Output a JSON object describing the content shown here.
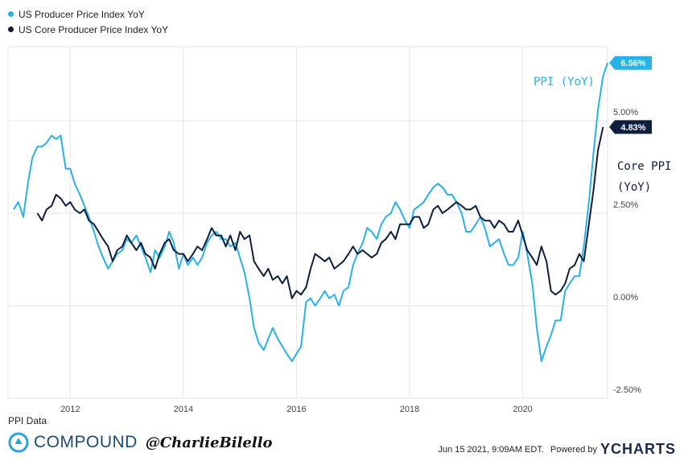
{
  "legend": {
    "items": [
      {
        "label": "US Producer Price Index YoY",
        "color": "#28b2e6"
      },
      {
        "label": "US Core Producer Price Index YoY",
        "color": "#0d1f3c"
      }
    ]
  },
  "footer": {
    "source": "PPI Data",
    "brand": "COMPOUND",
    "handle": "@CharlieBilello",
    "timestamp": "Jun 15 2021, 9:09AM EDT.",
    "powered_by": "Powered by",
    "provider": "YCHARTS"
  },
  "chart_data": {
    "type": "line",
    "x_ticks": [
      "2012",
      "2014",
      "2016",
      "2018",
      "2020"
    ],
    "y_ticks": [
      "-2.50%",
      "0.00%",
      "2.50%",
      "5.00%"
    ],
    "ylim": [
      -2.5,
      7.0
    ],
    "xlim": [
      2010.9,
      2021.5
    ],
    "grid": true,
    "legend_position": "top-left",
    "series": [
      {
        "name": "US Producer Price Index YoY",
        "color": "#28b2e6",
        "end_label": "6.56%",
        "annotation": [
          "PPI (YoY)"
        ],
        "points": [
          [
            2011.0,
            2.6
          ],
          [
            2011.08,
            2.8
          ],
          [
            2011.17,
            2.4
          ],
          [
            2011.25,
            3.3
          ],
          [
            2011.33,
            4.0
          ],
          [
            2011.42,
            4.3
          ],
          [
            2011.5,
            4.3
          ],
          [
            2011.58,
            4.4
          ],
          [
            2011.67,
            4.6
          ],
          [
            2011.75,
            4.5
          ],
          [
            2011.83,
            4.6
          ],
          [
            2011.92,
            3.7
          ],
          [
            2012.0,
            3.7
          ],
          [
            2012.08,
            3.3
          ],
          [
            2012.17,
            3.0
          ],
          [
            2012.25,
            2.7
          ],
          [
            2012.33,
            2.4
          ],
          [
            2012.42,
            2.0
          ],
          [
            2012.5,
            1.6
          ],
          [
            2012.58,
            1.3
          ],
          [
            2012.67,
            1.0
          ],
          [
            2012.75,
            1.2
          ],
          [
            2012.83,
            1.4
          ],
          [
            2012.92,
            1.5
          ],
          [
            2013.0,
            1.8
          ],
          [
            2013.08,
            1.7
          ],
          [
            2013.17,
            1.9
          ],
          [
            2013.25,
            1.6
          ],
          [
            2013.33,
            1.3
          ],
          [
            2013.42,
            0.9
          ],
          [
            2013.5,
            1.5
          ],
          [
            2013.58,
            1.3
          ],
          [
            2013.67,
            1.6
          ],
          [
            2013.75,
            2.0
          ],
          [
            2013.83,
            1.7
          ],
          [
            2013.92,
            1.0
          ],
          [
            2014.0,
            1.4
          ],
          [
            2014.08,
            1.1
          ],
          [
            2014.17,
            1.3
          ],
          [
            2014.25,
            1.1
          ],
          [
            2014.33,
            1.3
          ],
          [
            2014.42,
            1.7
          ],
          [
            2014.5,
            1.9
          ],
          [
            2014.58,
            2.0
          ],
          [
            2014.67,
            1.8
          ],
          [
            2014.75,
            1.8
          ],
          [
            2014.83,
            1.6
          ],
          [
            2014.92,
            1.7
          ],
          [
            2015.0,
            1.3
          ],
          [
            2015.08,
            0.9
          ],
          [
            2015.17,
            0.2
          ],
          [
            2015.25,
            -0.6
          ],
          [
            2015.33,
            -1.0
          ],
          [
            2015.42,
            -1.2
          ],
          [
            2015.5,
            -0.9
          ],
          [
            2015.58,
            -0.6
          ],
          [
            2015.67,
            -0.9
          ],
          [
            2015.75,
            -1.1
          ],
          [
            2015.83,
            -1.3
          ],
          [
            2015.92,
            -1.5
          ],
          [
            2016.0,
            -1.3
          ],
          [
            2016.08,
            -1.1
          ],
          [
            2016.17,
            0.1
          ],
          [
            2016.25,
            0.2
          ],
          [
            2016.33,
            0.0
          ],
          [
            2016.42,
            0.2
          ],
          [
            2016.5,
            0.4
          ],
          [
            2016.58,
            0.2
          ],
          [
            2016.67,
            0.3
          ],
          [
            2016.75,
            0.0
          ],
          [
            2016.83,
            0.4
          ],
          [
            2016.92,
            0.5
          ],
          [
            2017.0,
            1.1
          ],
          [
            2017.08,
            1.4
          ],
          [
            2017.17,
            1.7
          ],
          [
            2017.25,
            2.1
          ],
          [
            2017.33,
            2.0
          ],
          [
            2017.42,
            1.8
          ],
          [
            2017.5,
            2.2
          ],
          [
            2017.58,
            2.4
          ],
          [
            2017.67,
            2.5
          ],
          [
            2017.75,
            2.8
          ],
          [
            2017.83,
            2.6
          ],
          [
            2017.92,
            2.3
          ],
          [
            2018.0,
            2.1
          ],
          [
            2018.08,
            2.6
          ],
          [
            2018.17,
            2.7
          ],
          [
            2018.25,
            2.8
          ],
          [
            2018.33,
            3.0
          ],
          [
            2018.42,
            3.2
          ],
          [
            2018.5,
            3.3
          ],
          [
            2018.58,
            3.2
          ],
          [
            2018.67,
            3.0
          ],
          [
            2018.75,
            3.0
          ],
          [
            2018.83,
            2.8
          ],
          [
            2018.92,
            2.5
          ],
          [
            2019.0,
            2.0
          ],
          [
            2019.08,
            2.0
          ],
          [
            2019.17,
            2.2
          ],
          [
            2019.25,
            2.4
          ],
          [
            2019.33,
            2.1
          ],
          [
            2019.42,
            1.6
          ],
          [
            2019.5,
            1.7
          ],
          [
            2019.58,
            1.8
          ],
          [
            2019.67,
            1.4
          ],
          [
            2019.75,
            1.1
          ],
          [
            2019.83,
            1.1
          ],
          [
            2019.92,
            1.3
          ],
          [
            2020.0,
            2.0
          ],
          [
            2020.08,
            1.4
          ],
          [
            2020.17,
            0.6
          ],
          [
            2020.25,
            -0.6
          ],
          [
            2020.33,
            -1.5
          ],
          [
            2020.42,
            -1.1
          ],
          [
            2020.5,
            -0.8
          ],
          [
            2020.58,
            -0.4
          ],
          [
            2020.67,
            -0.4
          ],
          [
            2020.75,
            0.4
          ],
          [
            2020.83,
            0.6
          ],
          [
            2020.92,
            0.8
          ],
          [
            2021.0,
            0.8
          ],
          [
            2021.08,
            1.6
          ],
          [
            2021.17,
            2.8
          ],
          [
            2021.25,
            4.1
          ],
          [
            2021.33,
            5.3
          ],
          [
            2021.42,
            6.2
          ],
          [
            2021.5,
            6.56
          ]
        ]
      },
      {
        "name": "US Core Producer Price Index YoY",
        "color": "#0d1f3c",
        "end_label": "4.83%",
        "annotation": [
          "Core PPI",
          "(YoY)"
        ],
        "points": [
          [
            2011.42,
            2.5
          ],
          [
            2011.5,
            2.3
          ],
          [
            2011.58,
            2.6
          ],
          [
            2011.67,
            2.7
          ],
          [
            2011.75,
            3.0
          ],
          [
            2011.83,
            2.9
          ],
          [
            2011.92,
            2.7
          ],
          [
            2012.0,
            2.8
          ],
          [
            2012.08,
            2.6
          ],
          [
            2012.17,
            2.5
          ],
          [
            2012.25,
            2.6
          ],
          [
            2012.33,
            2.3
          ],
          [
            2012.42,
            2.2
          ],
          [
            2012.5,
            2.0
          ],
          [
            2012.58,
            1.8
          ],
          [
            2012.67,
            1.6
          ],
          [
            2012.75,
            1.2
          ],
          [
            2012.83,
            1.5
          ],
          [
            2012.92,
            1.6
          ],
          [
            2013.0,
            1.9
          ],
          [
            2013.08,
            1.7
          ],
          [
            2013.17,
            1.5
          ],
          [
            2013.25,
            1.7
          ],
          [
            2013.33,
            1.4
          ],
          [
            2013.42,
            1.3
          ],
          [
            2013.5,
            1.0
          ],
          [
            2013.58,
            1.4
          ],
          [
            2013.67,
            1.7
          ],
          [
            2013.75,
            1.8
          ],
          [
            2013.83,
            1.5
          ],
          [
            2013.92,
            1.4
          ],
          [
            2014.0,
            1.4
          ],
          [
            2014.08,
            1.2
          ],
          [
            2014.17,
            1.4
          ],
          [
            2014.25,
            1.6
          ],
          [
            2014.33,
            1.5
          ],
          [
            2014.42,
            1.8
          ],
          [
            2014.5,
            2.1
          ],
          [
            2014.58,
            1.9
          ],
          [
            2014.67,
            1.9
          ],
          [
            2014.75,
            1.6
          ],
          [
            2014.83,
            1.9
          ],
          [
            2014.92,
            1.5
          ],
          [
            2015.0,
            2.0
          ],
          [
            2015.08,
            1.8
          ],
          [
            2015.17,
            1.9
          ],
          [
            2015.25,
            1.2
          ],
          [
            2015.33,
            1.0
          ],
          [
            2015.42,
            0.8
          ],
          [
            2015.5,
            1.0
          ],
          [
            2015.58,
            0.7
          ],
          [
            2015.67,
            0.8
          ],
          [
            2015.75,
            0.6
          ],
          [
            2015.83,
            0.8
          ],
          [
            2015.92,
            0.2
          ],
          [
            2016.0,
            0.4
          ],
          [
            2016.08,
            0.3
          ],
          [
            2016.17,
            0.5
          ],
          [
            2016.25,
            1.0
          ],
          [
            2016.33,
            1.4
          ],
          [
            2016.42,
            1.3
          ],
          [
            2016.5,
            1.2
          ],
          [
            2016.58,
            1.3
          ],
          [
            2016.67,
            1.0
          ],
          [
            2016.75,
            1.1
          ],
          [
            2016.83,
            1.2
          ],
          [
            2016.92,
            1.4
          ],
          [
            2017.0,
            1.6
          ],
          [
            2017.08,
            1.4
          ],
          [
            2017.17,
            1.5
          ],
          [
            2017.25,
            1.4
          ],
          [
            2017.33,
            1.3
          ],
          [
            2017.42,
            1.4
          ],
          [
            2017.5,
            1.7
          ],
          [
            2017.58,
            1.8
          ],
          [
            2017.67,
            2.0
          ],
          [
            2017.75,
            1.8
          ],
          [
            2017.83,
            2.2
          ],
          [
            2017.92,
            2.2
          ],
          [
            2018.0,
            2.2
          ],
          [
            2018.08,
            2.4
          ],
          [
            2018.17,
            2.4
          ],
          [
            2018.25,
            2.1
          ],
          [
            2018.33,
            2.2
          ],
          [
            2018.42,
            2.6
          ],
          [
            2018.5,
            2.7
          ],
          [
            2018.58,
            2.5
          ],
          [
            2018.67,
            2.6
          ],
          [
            2018.75,
            2.7
          ],
          [
            2018.83,
            2.8
          ],
          [
            2018.92,
            2.7
          ],
          [
            2019.0,
            2.6
          ],
          [
            2019.08,
            2.6
          ],
          [
            2019.17,
            2.7
          ],
          [
            2019.25,
            2.4
          ],
          [
            2019.33,
            2.3
          ],
          [
            2019.42,
            2.3
          ],
          [
            2019.5,
            2.1
          ],
          [
            2019.58,
            2.3
          ],
          [
            2019.67,
            2.2
          ],
          [
            2019.75,
            2.0
          ],
          [
            2019.83,
            2.0
          ],
          [
            2019.92,
            2.3
          ],
          [
            2020.0,
            1.9
          ],
          [
            2020.08,
            1.5
          ],
          [
            2020.17,
            1.3
          ],
          [
            2020.25,
            1.1
          ],
          [
            2020.33,
            1.6
          ],
          [
            2020.42,
            1.2
          ],
          [
            2020.5,
            0.4
          ],
          [
            2020.58,
            0.3
          ],
          [
            2020.67,
            0.4
          ],
          [
            2020.75,
            0.6
          ],
          [
            2020.83,
            1.0
          ],
          [
            2020.92,
            1.1
          ],
          [
            2021.0,
            1.4
          ],
          [
            2021.08,
            1.2
          ],
          [
            2021.17,
            2.2
          ],
          [
            2021.25,
            3.1
          ],
          [
            2021.33,
            4.2
          ],
          [
            2021.42,
            4.83
          ]
        ]
      }
    ]
  }
}
